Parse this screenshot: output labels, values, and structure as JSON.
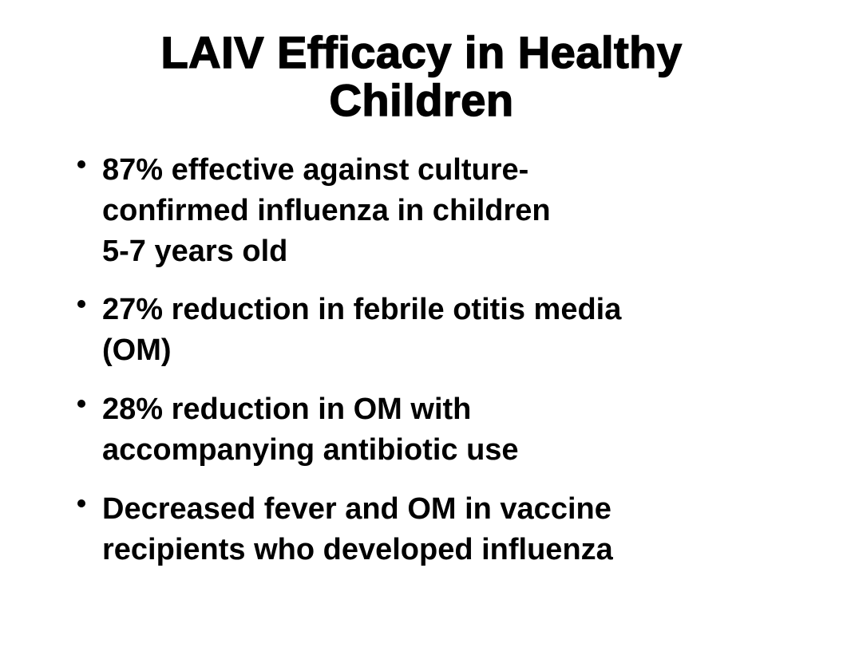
{
  "title": [
    "LAIV Efficacy in Healthy",
    "Children"
  ],
  "bullets": [
    [
      "87% effective against culture-",
      "confirmed influenza in children",
      "5-7 years old"
    ],
    [
      "27% reduction in febrile otitis media",
      "(OM)"
    ],
    [
      "28% reduction in OM with",
      "accompanying antibiotic use"
    ],
    [
      "Decreased fever and OM in vaccine",
      "recipients who developed influenza"
    ]
  ]
}
